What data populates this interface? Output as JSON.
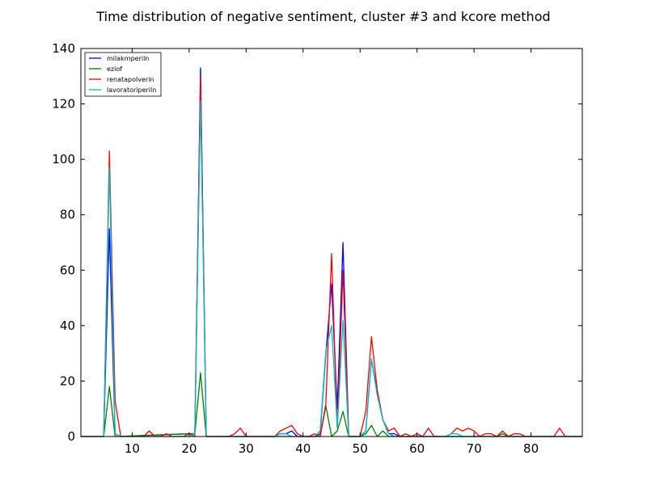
{
  "chart_data": {
    "type": "line",
    "title": "Time distribution of negative sentiment, cluster #3 and kcore method",
    "xlabel": "",
    "ylabel": "",
    "xlim": [
      1,
      89
    ],
    "ylim": [
      0,
      140
    ],
    "xticks": [
      10,
      20,
      30,
      40,
      50,
      60,
      70,
      80
    ],
    "yticks": [
      0,
      20,
      40,
      60,
      80,
      100,
      120,
      140
    ],
    "grid": false,
    "legend_position": "top-left",
    "series": [
      {
        "name": "milakmperiln",
        "color": "#0000ff",
        "points": [
          [
            1,
            0
          ],
          [
            5,
            0
          ],
          [
            6,
            75
          ],
          [
            7,
            1
          ],
          [
            8,
            0
          ],
          [
            20,
            1
          ],
          [
            21,
            1
          ],
          [
            22,
            133
          ],
          [
            23,
            0
          ],
          [
            35,
            0
          ],
          [
            36,
            1
          ],
          [
            37,
            1
          ],
          [
            38,
            2
          ],
          [
            39,
            0
          ],
          [
            42,
            0
          ],
          [
            43,
            1
          ],
          [
            44,
            30
          ],
          [
            45,
            55
          ],
          [
            46,
            10
          ],
          [
            47,
            70
          ],
          [
            48,
            0
          ],
          [
            50,
            0
          ],
          [
            51,
            2
          ],
          [
            52,
            28
          ],
          [
            53,
            16
          ],
          [
            54,
            6
          ],
          [
            55,
            1
          ],
          [
            56,
            1
          ],
          [
            57,
            0
          ],
          [
            89,
            0
          ]
        ]
      },
      {
        "name": "eziof",
        "color": "#008000",
        "points": [
          [
            1,
            0
          ],
          [
            5,
            0
          ],
          [
            6,
            18
          ],
          [
            7,
            0
          ],
          [
            20,
            1
          ],
          [
            21,
            1
          ],
          [
            22,
            23
          ],
          [
            23,
            0
          ],
          [
            42,
            0
          ],
          [
            43,
            0
          ],
          [
            44,
            11
          ],
          [
            45,
            0
          ],
          [
            46,
            2
          ],
          [
            47,
            9
          ],
          [
            48,
            0
          ],
          [
            50,
            0
          ],
          [
            51,
            1
          ],
          [
            52,
            4
          ],
          [
            53,
            0
          ],
          [
            54,
            2
          ],
          [
            55,
            0
          ],
          [
            74,
            0
          ],
          [
            75,
            1
          ],
          [
            76,
            0
          ],
          [
            89,
            0
          ]
        ]
      },
      {
        "name": "renatapolverin",
        "color": "#ff0000",
        "points": [
          [
            1,
            0
          ],
          [
            5,
            0
          ],
          [
            6,
            103
          ],
          [
            7,
            13
          ],
          [
            8,
            0
          ],
          [
            12,
            0
          ],
          [
            13,
            2
          ],
          [
            14,
            0
          ],
          [
            15,
            0
          ],
          [
            16,
            1
          ],
          [
            17,
            0
          ],
          [
            19,
            0
          ],
          [
            20,
            1
          ],
          [
            21,
            0
          ],
          [
            22,
            130
          ],
          [
            23,
            0
          ],
          [
            27,
            0
          ],
          [
            28,
            1
          ],
          [
            29,
            3
          ],
          [
            30,
            0
          ],
          [
            35,
            0
          ],
          [
            36,
            2
          ],
          [
            37,
            3
          ],
          [
            38,
            4
          ],
          [
            39,
            1
          ],
          [
            40,
            0
          ],
          [
            41,
            0
          ],
          [
            42,
            1
          ],
          [
            43,
            0
          ],
          [
            44,
            12
          ],
          [
            45,
            66
          ],
          [
            46,
            3
          ],
          [
            47,
            60
          ],
          [
            48,
            0
          ],
          [
            50,
            0
          ],
          [
            51,
            9
          ],
          [
            52,
            36
          ],
          [
            53,
            17
          ],
          [
            54,
            6
          ],
          [
            55,
            2
          ],
          [
            56,
            3
          ],
          [
            57,
            0
          ],
          [
            58,
            1
          ],
          [
            59,
            0
          ],
          [
            60,
            1
          ],
          [
            61,
            0
          ],
          [
            62,
            3
          ],
          [
            63,
            0
          ],
          [
            65,
            0
          ],
          [
            66,
            1
          ],
          [
            67,
            3
          ],
          [
            68,
            2
          ],
          [
            69,
            3
          ],
          [
            70,
            2
          ],
          [
            71,
            0
          ],
          [
            72,
            1
          ],
          [
            73,
            1
          ],
          [
            74,
            0
          ],
          [
            75,
            2
          ],
          [
            76,
            0
          ],
          [
            77,
            1
          ],
          [
            78,
            1
          ],
          [
            79,
            0
          ],
          [
            84,
            0
          ],
          [
            85,
            3
          ],
          [
            86,
            0
          ],
          [
            89,
            0
          ]
        ]
      },
      {
        "name": "lavoratoriperiln",
        "color": "#00bfbf",
        "points": [
          [
            1,
            0
          ],
          [
            5,
            0
          ],
          [
            6,
            97
          ],
          [
            7,
            1
          ],
          [
            8,
            0
          ],
          [
            20,
            0
          ],
          [
            21,
            1
          ],
          [
            22,
            121
          ],
          [
            23,
            0
          ],
          [
            35,
            0
          ],
          [
            36,
            1
          ],
          [
            37,
            1
          ],
          [
            38,
            0
          ],
          [
            42,
            0
          ],
          [
            43,
            2
          ],
          [
            44,
            31
          ],
          [
            45,
            40
          ],
          [
            46,
            3
          ],
          [
            47,
            42
          ],
          [
            48,
            0
          ],
          [
            50,
            0
          ],
          [
            51,
            2
          ],
          [
            52,
            28
          ],
          [
            53,
            15
          ],
          [
            54,
            6
          ],
          [
            55,
            1
          ],
          [
            56,
            0
          ],
          [
            65,
            0
          ],
          [
            66,
            1
          ],
          [
            67,
            1
          ],
          [
            68,
            0
          ],
          [
            89,
            0
          ]
        ]
      }
    ]
  }
}
